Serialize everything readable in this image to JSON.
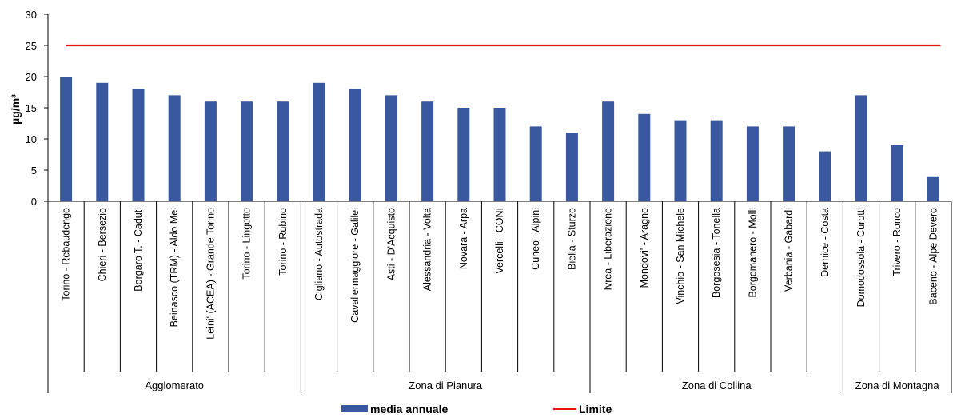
{
  "chart_data": {
    "type": "bar",
    "ylabel": "µg/m³",
    "ylim": [
      0,
      30
    ],
    "yticks": [
      0,
      5,
      10,
      15,
      20,
      25,
      30
    ],
    "categories": [
      "Torino - Rebaudengo",
      "Chieri - Bersezio",
      "Borgaro T. - Caduti",
      "Beinasco (TRM) - Aldo Mei",
      "Leini' (ACEA) - Grande Torino",
      "Torino - Lingotto",
      "Torino - Rubino",
      "Cigliano - Autostrada",
      "Cavallermaggiore - Galilei",
      "Asti - D'Acquisto",
      "Alessandria - Volta",
      "Novara - Arpa",
      "Vercelli - CONI",
      "Cuneo - Alpini",
      "Biella - Sturzo",
      "Ivrea - Liberazione",
      "Mondovi' - Aragno",
      "Vinchio - San Michele",
      "Borgosesia - Tonella",
      "Borgomanero - Molli",
      "Verbania - Gabardi",
      "Dernice - Costa",
      "Domodossola - Curotti",
      "Trivero - Ronco",
      "Baceno - Alpe Devero"
    ],
    "groups": [
      {
        "name": "Agglomerato",
        "count": 7
      },
      {
        "name": "Zona di Pianura",
        "count": 8
      },
      {
        "name": "Zona di Collina",
        "count": 7
      },
      {
        "name": "Zona di Montagna",
        "count": 3
      }
    ],
    "series": [
      {
        "name": "media annuale",
        "kind": "bar",
        "color": "#3A58A0",
        "values": [
          20,
          19,
          18,
          17,
          16,
          16,
          16,
          19,
          18,
          17,
          16,
          15,
          15,
          12,
          11,
          16,
          14,
          13,
          13,
          12,
          12,
          8,
          17,
          9,
          4
        ]
      },
      {
        "name": "Limite",
        "kind": "line",
        "color": "#E8141B",
        "value": 25
      }
    ],
    "grid": false,
    "legend": "bottom"
  }
}
